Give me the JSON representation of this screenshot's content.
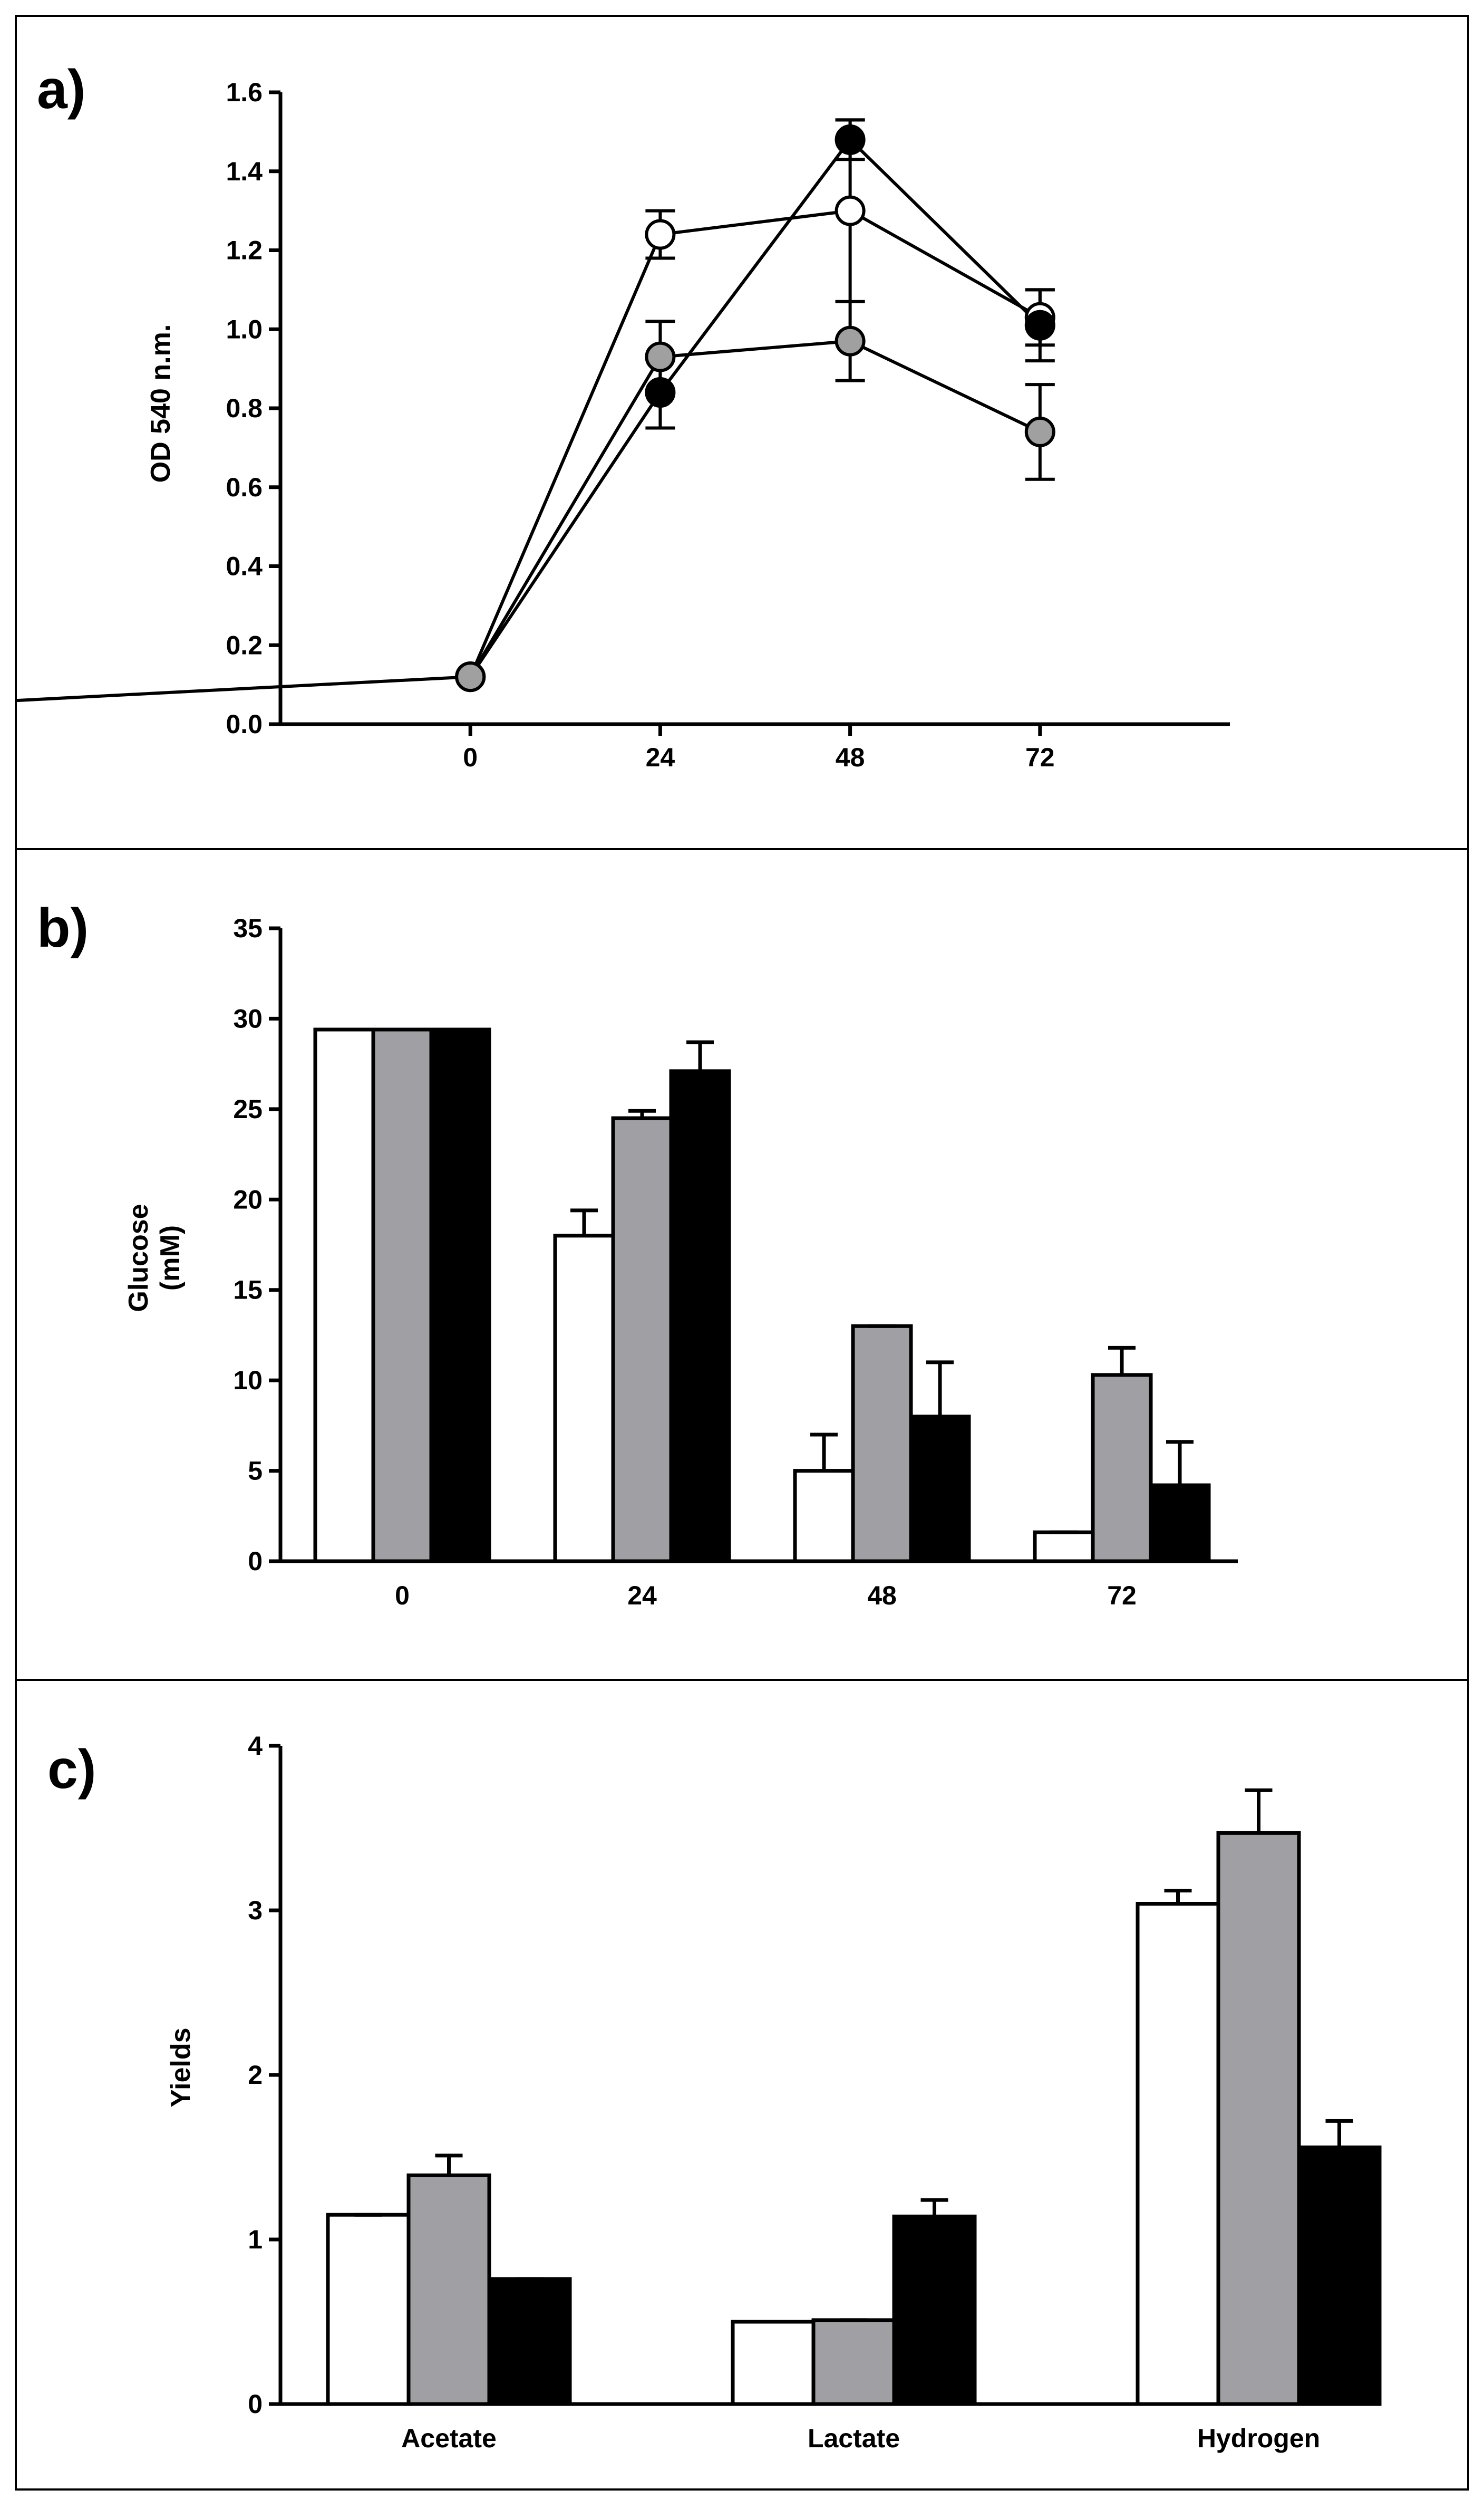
{
  "chart_data": [
    {
      "panel": "a)",
      "type": "line",
      "ylabel": "OD 540 n.m.",
      "xlabel": "",
      "x": [
        0,
        24,
        48,
        72
      ],
      "x_tick_labels": [
        "0",
        "24",
        "48",
        "72"
      ],
      "ylim": [
        0.0,
        1.6
      ],
      "y_tick_labels": [
        "0.0",
        "0.2",
        "0.4",
        "0.6",
        "0.8",
        "1.0",
        "1.2",
        "1.4",
        "1.6"
      ],
      "series": [
        {
          "name": "white",
          "fill": "#ffffff",
          "values": [
            0.12,
            1.24,
            1.3,
            1.03
          ],
          "errors": [
            0.0,
            0.06,
            0.23,
            0.07
          ]
        },
        {
          "name": "black",
          "fill": "#000000",
          "values": [
            0.12,
            0.84,
            1.48,
            1.01
          ],
          "errors": [
            0.0,
            0.09,
            0.05,
            0.09
          ]
        },
        {
          "name": "grey",
          "fill": "#a0a0a0",
          "values": [
            0.12,
            0.93,
            0.97,
            0.74
          ],
          "errors": [
            0.0,
            0.09,
            0.1,
            0.12
          ]
        }
      ]
    },
    {
      "panel": "b)",
      "type": "bar",
      "ylabel": "Glucose\n(mM)",
      "ylabel_lines": [
        "Glucose",
        "(mM)"
      ],
      "xlabel": "",
      "categories": [
        "0",
        "24",
        "48",
        "72"
      ],
      "ylim": [
        0,
        35
      ],
      "y_tick_labels": [
        "0",
        "5",
        "10",
        "15",
        "20",
        "25",
        "30",
        "35"
      ],
      "series": [
        {
          "name": "white",
          "fill": "#ffffff",
          "values": [
            29.4,
            18.0,
            5.0,
            1.6
          ],
          "errors": [
            0.0,
            1.4,
            2.0,
            0.0
          ]
        },
        {
          "name": "grey",
          "fill": "#a0a0a4",
          "values": [
            29.4,
            24.5,
            13.0,
            10.3
          ],
          "errors": [
            0.0,
            0.4,
            0.0,
            1.5
          ]
        },
        {
          "name": "black",
          "fill": "#000000",
          "values": [
            29.4,
            27.1,
            8.0,
            4.2
          ],
          "errors": [
            0.0,
            1.6,
            3.0,
            2.4
          ]
        }
      ]
    },
    {
      "panel": "c)",
      "type": "bar",
      "ylabel": "Yields",
      "xlabel": "",
      "categories": [
        "Acetate",
        "Lactate",
        "Hydrogen"
      ],
      "ylim": [
        0,
        4
      ],
      "y_tick_labels": [
        "0",
        "1",
        "2",
        "3",
        "4"
      ],
      "series": [
        {
          "name": "white",
          "fill": "#ffffff",
          "values": [
            1.15,
            0.5,
            3.04
          ],
          "errors": [
            0.0,
            0.0,
            0.08
          ]
        },
        {
          "name": "grey",
          "fill": "#a0a0a4",
          "values": [
            1.39,
            0.51,
            3.47
          ],
          "errors": [
            0.12,
            0.0,
            0.26
          ]
        },
        {
          "name": "black",
          "fill": "#000000",
          "values": [
            0.76,
            1.14,
            1.56
          ],
          "errors": [
            0.0,
            0.1,
            0.16
          ]
        }
      ]
    }
  ]
}
